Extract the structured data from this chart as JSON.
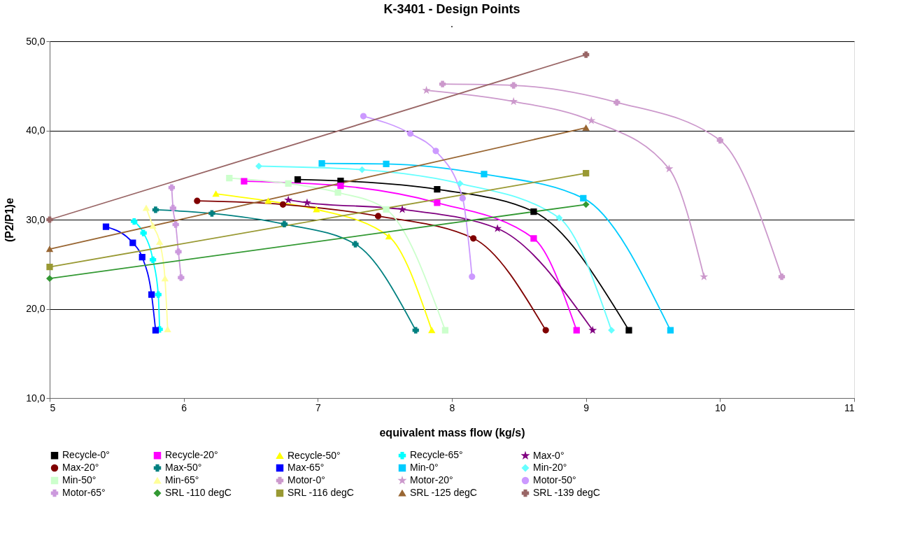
{
  "chart_data": {
    "type": "line",
    "title": "K-3401 - Design Points",
    "subtitle": ".",
    "xlabel": "equivalent mass flow (kg/s)",
    "ylabel": "(P2/P1)e",
    "xlim": [
      5,
      11
    ],
    "xticks": [
      5,
      6,
      7,
      8,
      9,
      10,
      11
    ],
    "ylim": [
      10,
      50
    ],
    "yticks": [
      {
        "value": 10,
        "label": "10,0"
      },
      {
        "value": 20,
        "label": "20,0"
      },
      {
        "value": 30,
        "label": "30,0"
      },
      {
        "value": 40,
        "label": "40,0"
      },
      {
        "value": 50,
        "label": "50,0"
      }
    ],
    "grid": "y",
    "legend": "bottom",
    "line_style": "solid",
    "series": [
      {
        "name": "Recycle-0°",
        "color": "#000000",
        "marker": "square",
        "x": [
          6.85,
          7.17,
          7.89,
          8.61,
          9.32
        ],
        "values": [
          34.5,
          34.35,
          33.4,
          30.9,
          17.6
        ]
      },
      {
        "name": "Recycle-20°",
        "color": "#ff00ff",
        "marker": "square",
        "x": [
          6.45,
          7.17,
          7.89,
          8.61,
          8.93
        ],
        "values": [
          34.3,
          33.8,
          31.9,
          27.9,
          17.6
        ]
      },
      {
        "name": "Recycle-50°",
        "color": "#ffff00",
        "marker": "triangle",
        "x": [
          6.24,
          6.63,
          6.99,
          7.53,
          7.85
        ],
        "values": [
          32.9,
          32.1,
          31.15,
          28.1,
          17.6
        ]
      },
      {
        "name": "Recycle-65°",
        "color": "#00ffff",
        "marker": "cross",
        "x": [
          5.63,
          5.7,
          5.77,
          5.81,
          5.82
        ],
        "values": [
          29.8,
          28.5,
          25.5,
          21.6,
          17.7
        ]
      },
      {
        "name": "Max-0°",
        "color": "#800080",
        "marker": "star",
        "x": [
          6.78,
          6.92,
          7.63,
          8.34,
          9.05
        ],
        "values": [
          32.2,
          31.9,
          31.15,
          29.0,
          17.6
        ]
      },
      {
        "name": "Max-20°",
        "color": "#800000",
        "marker": "circle",
        "x": [
          6.1,
          6.74,
          7.45,
          8.16,
          8.7
        ],
        "values": [
          32.1,
          31.7,
          30.4,
          27.9,
          17.6
        ]
      },
      {
        "name": "Max-50°",
        "color": "#008080",
        "marker": "cross",
        "x": [
          5.79,
          6.21,
          6.75,
          7.28,
          7.73
        ],
        "values": [
          31.1,
          30.7,
          29.5,
          27.25,
          17.6
        ]
      },
      {
        "name": "Max-65°",
        "color": "#0000ff",
        "marker": "square",
        "x": [
          5.42,
          5.62,
          5.69,
          5.76,
          5.79
        ],
        "values": [
          29.2,
          27.4,
          25.8,
          21.6,
          17.6
        ]
      },
      {
        "name": "Min-0°",
        "color": "#00ccff",
        "marker": "square",
        "x": [
          7.03,
          7.51,
          8.24,
          8.98,
          9.63
        ],
        "values": [
          36.3,
          36.25,
          35.1,
          32.4,
          17.6
        ]
      },
      {
        "name": "Min-20°",
        "color": "#66ffff",
        "marker": "diamond",
        "x": [
          6.56,
          7.33,
          8.06,
          8.8,
          9.19
        ],
        "values": [
          36.0,
          35.6,
          34.05,
          30.2,
          17.6
        ]
      },
      {
        "name": "Min-50°",
        "color": "#ccffcc",
        "marker": "square",
        "x": [
          6.34,
          6.78,
          7.15,
          7.51,
          7.95
        ],
        "values": [
          34.65,
          34.05,
          33.05,
          31.15,
          17.6
        ]
      },
      {
        "name": "Min-65°",
        "color": "#ffff99",
        "marker": "triangle",
        "x": [
          5.72,
          5.77,
          5.82,
          5.86,
          5.88
        ],
        "values": [
          31.3,
          29.3,
          27.5,
          23.4,
          17.7
        ]
      },
      {
        "name": "Motor-0°",
        "color": "#cc99cc",
        "marker": "cross",
        "x": [
          7.93,
          8.46,
          9.23,
          10.0,
          10.46
        ],
        "values": [
          45.2,
          45.05,
          43.15,
          38.9,
          23.6
        ]
      },
      {
        "name": "Motor-20°",
        "color": "#cc99cc",
        "marker": "star",
        "x": [
          7.81,
          8.46,
          9.04,
          9.62,
          9.88
        ],
        "values": [
          44.5,
          43.25,
          41.1,
          35.7,
          23.6
        ]
      },
      {
        "name": "Motor-50°",
        "color": "#cc99ff",
        "marker": "circle",
        "x": [
          7.34,
          7.69,
          7.88,
          8.08,
          8.15
        ],
        "values": [
          41.6,
          39.65,
          37.7,
          32.4,
          23.6
        ]
      },
      {
        "name": "Motor-65°",
        "color": "#cc99dd",
        "marker": "cross",
        "x": [
          5.91,
          5.92,
          5.94,
          5.96,
          5.98
        ],
        "values": [
          33.6,
          31.3,
          29.45,
          26.4,
          23.5
        ]
      },
      {
        "name": "SRL -110 degC",
        "color": "#339933",
        "marker": "diamond",
        "x": [
          5,
          9
        ],
        "values": [
          23.4,
          31.7
        ]
      },
      {
        "name": "SRL -116 degC",
        "color": "#999933",
        "marker": "square",
        "x": [
          5,
          9
        ],
        "values": [
          24.7,
          35.2
        ]
      },
      {
        "name": "SRL -125 degC",
        "color": "#996633",
        "marker": "triangle",
        "x": [
          5,
          9
        ],
        "values": [
          26.7,
          40.3
        ]
      },
      {
        "name": "SRL -139 degC",
        "color": "#996666",
        "marker": "cross",
        "x": [
          5,
          9
        ],
        "values": [
          30.0,
          48.5
        ]
      }
    ]
  }
}
